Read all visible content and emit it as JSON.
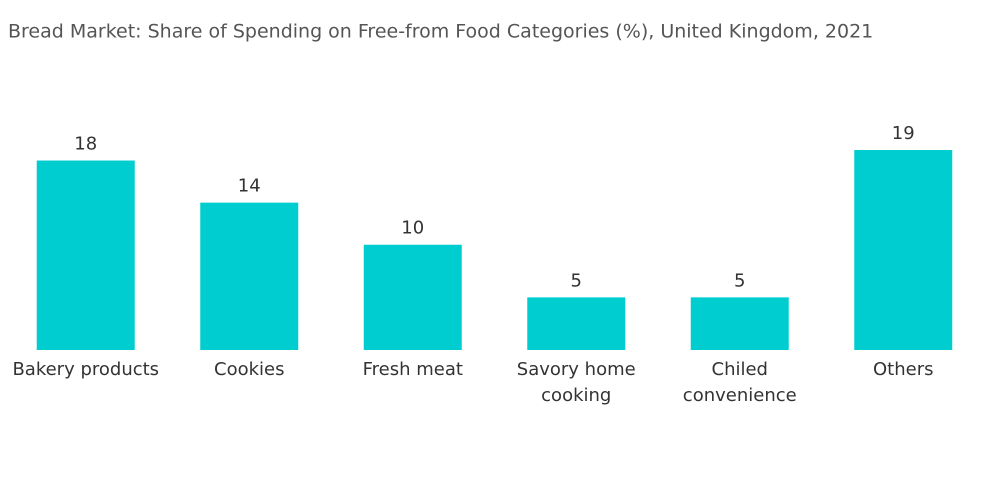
{
  "chart_data": {
    "type": "bar",
    "title": "Bread Market: Share of Spending on Free-from Food Categories (%), United Kingdom, 2021",
    "categories": [
      "Bakery products",
      "Cookies",
      "Fresh meat",
      "Savory home cooking",
      "Chiled convenience",
      "Others"
    ],
    "values": [
      18,
      14,
      10,
      5,
      5,
      19
    ],
    "color": "#00cdd0"
  }
}
